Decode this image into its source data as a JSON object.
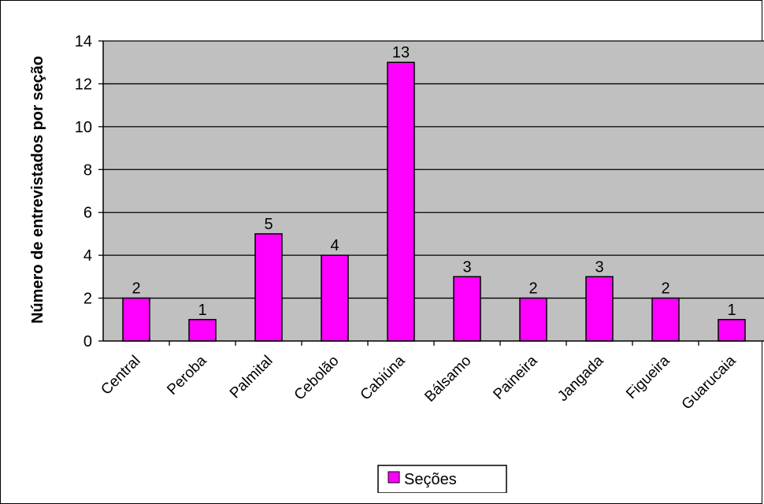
{
  "chart_data": {
    "type": "bar",
    "title": "",
    "xlabel": "",
    "ylabel": "Número de entrevistados por seção",
    "categories": [
      "Central",
      "Peroba",
      "Palmital",
      "Cebolão",
      "Cabiúna",
      "Bálsamo",
      "Paineira",
      "Jangada",
      "Figueira",
      "Guarucaia"
    ],
    "series": [
      {
        "name": "Seções",
        "values": [
          2,
          1,
          5,
          4,
          13,
          3,
          2,
          3,
          2,
          1
        ]
      }
    ],
    "ylim": [
      0,
      14
    ],
    "yticks": [
      "0",
      "2",
      "4",
      "6",
      "8",
      "10",
      "12",
      "14"
    ],
    "grid": true,
    "legend": "bottom",
    "data_labels": true,
    "colors": {
      "bar": "#FF00FF",
      "plot_background": "#C0C0C0",
      "gridline": "#000000"
    }
  }
}
